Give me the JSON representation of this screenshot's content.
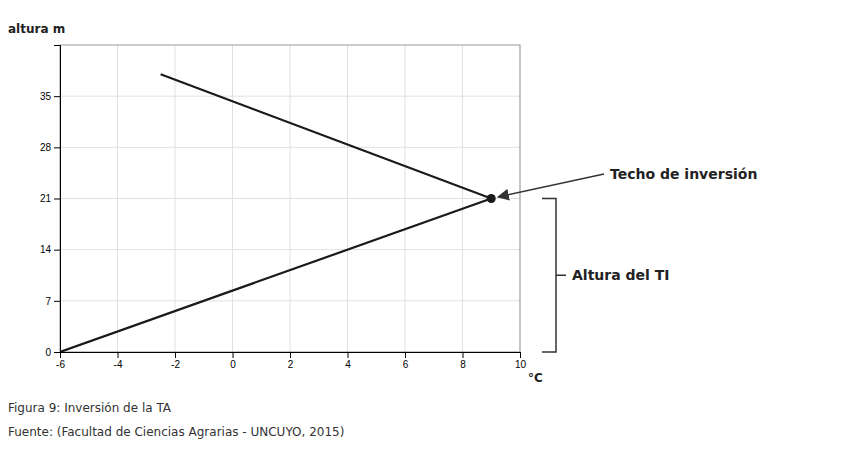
{
  "chart_data": {
    "type": "line",
    "x_label": "°C",
    "y_label": "altura m",
    "series": [
      {
        "color": "#1a1a1a",
        "x": [
          -2.5,
          9
        ],
        "values": [
          38,
          21
        ]
      },
      {
        "color": "#1a1a1a",
        "x": [
          -6,
          9
        ],
        "values": [
          0,
          21
        ]
      },
      {
        "type": "scatter",
        "marker": "circle",
        "color": "#1a1a1a",
        "x": [
          9
        ],
        "values": [
          21
        ]
      }
    ],
    "xlim": [
      -6,
      10
    ],
    "ylim": [
      0,
      42
    ],
    "xticks": [
      -6,
      -4,
      -2,
      0,
      2,
      4,
      6,
      8,
      10
    ],
    "yticks": [
      0,
      7,
      14,
      21,
      28,
      35
    ],
    "grid": true,
    "annotations": [
      {
        "text": "Techo de inversión",
        "x": 9,
        "y": 21
      },
      {
        "text": "Altura del TI",
        "from": 0,
        "to": 21
      }
    ],
    "captions": [
      "Figura 9: Inversión de la TA",
      "Fuente: (Facultad de Ciencias Agrarias - UNCUYO, 2015)"
    ]
  }
}
